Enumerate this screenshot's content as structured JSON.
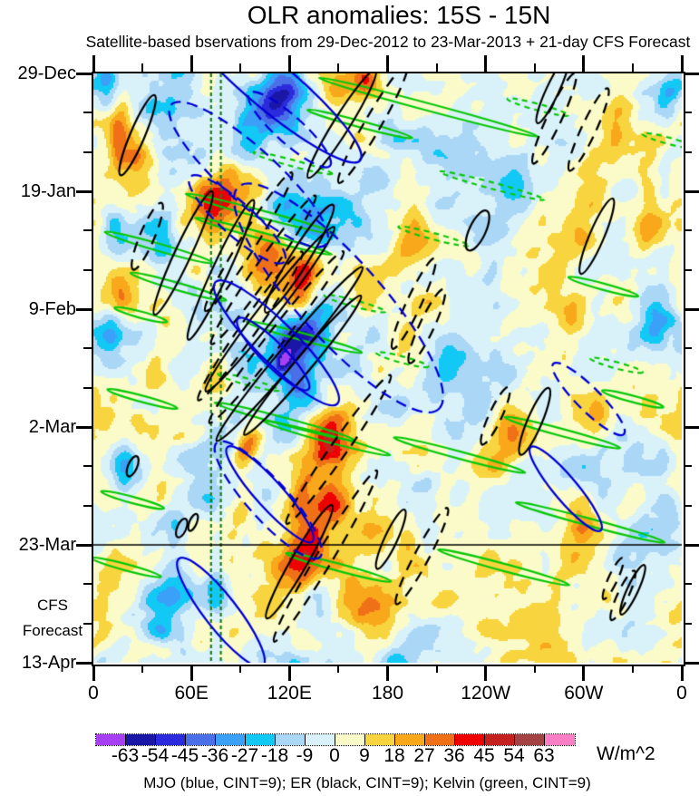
{
  "title": "OLR anomalies: 15S - 15N",
  "subtitle": "Satellite-based bservations from 29-Dec-2012 to 23-Mar-2013 + 21-day CFS Forecast",
  "caption": "MJO (blue, CINT=9); ER (black, CINT=9); Kelvin (green, CINT=9)",
  "y_axis": {
    "labels": [
      "29-Dec",
      "19-Jan",
      "9-Feb",
      "2-Mar",
      "23-Mar",
      "13-Apr"
    ],
    "side_labels": [
      "CFS",
      "Forecast"
    ]
  },
  "x_axis": {
    "labels": [
      "0",
      "60E",
      "120E",
      "180",
      "120W",
      "60W",
      "0"
    ]
  },
  "colorbar": {
    "units": "W/m^2",
    "tick_labels": [
      "-63",
      "-54",
      "-45",
      "-36",
      "-27",
      "-18",
      "-9",
      "0",
      "9",
      "18",
      "27",
      "36",
      "45",
      "54",
      "63"
    ],
    "colors": [
      "#A640F2",
      "#1B17A6",
      "#2B2BDD",
      "#4A6FE8",
      "#3AA0F8",
      "#12C9F6",
      "#ABD7F6",
      "#D9F2FA",
      "#FBFBC9",
      "#F8D43E",
      "#F9A71B",
      "#F07018",
      "#EF0000",
      "#C62121",
      "#A34343",
      "#FC7EC4"
    ]
  },
  "chart_data": {
    "type": "heatmap",
    "title": "OLR anomalies: 15S - 15N",
    "x_label_ticks": [
      "0",
      "60E",
      "120E",
      "180",
      "120W",
      "60W",
      "0"
    ],
    "x_range_deg": [
      0,
      360
    ],
    "time_ticks": [
      "29-Dec",
      "19-Jan",
      "9-Feb",
      "2-Mar",
      "23-Mar",
      "13-Apr"
    ],
    "time_span_days": 105,
    "forecast_line_day": 84,
    "contour_interval": 9,
    "levels": [
      -63,
      -54,
      -45,
      -36,
      -27,
      -18,
      -9,
      0,
      9,
      18,
      27,
      36,
      45,
      54,
      63
    ],
    "palette": [
      "#A640F2",
      "#1B17A6",
      "#2B2BDD",
      "#4A6FE8",
      "#3AA0F8",
      "#12C9F6",
      "#ABD7F6",
      "#D9F2FA",
      "#FBFBC9",
      "#F8D43E",
      "#F9A71B",
      "#F07018",
      "#EF0000",
      "#C62121",
      "#A34343",
      "#FC7EC4"
    ],
    "dashed_vlines_lon": [
      72,
      78
    ],
    "vline_color": "#1F7A1F",
    "mjo_color": "#0000D6",
    "er_color": "#000000",
    "kelvin_color": "#0AC80A",
    "noise": {
      "seed": 7,
      "octaves": [
        [
          9,
          12,
          0.5
        ],
        [
          18,
          11,
          -0.18
        ],
        [
          36,
          7,
          0.3
        ],
        [
          60,
          3.5,
          0
        ]
      ]
    },
    "blobs": [
      [
        115,
        5,
        -46,
        24,
        6,
        35
      ],
      [
        118,
        4,
        -15,
        8,
        3,
        35
      ],
      [
        108,
        7,
        -15,
        10,
        4,
        35
      ],
      [
        95,
        13,
        -28,
        16,
        6,
        35
      ],
      [
        148,
        4,
        26,
        13,
        5,
        0
      ],
      [
        166,
        1,
        30,
        8,
        3,
        0
      ],
      [
        18,
        8,
        22,
        8,
        5,
        0
      ],
      [
        27,
        15,
        20,
        10,
        5,
        0
      ],
      [
        15,
        13,
        22,
        5,
        4,
        0
      ],
      [
        8,
        3,
        -22,
        6,
        4,
        0
      ],
      [
        75,
        22,
        32,
        15,
        6,
        20
      ],
      [
        132,
        25,
        -32,
        16,
        6,
        20
      ],
      [
        12,
        27,
        -22,
        7,
        5,
        0
      ],
      [
        42,
        30,
        -22,
        9,
        5,
        0
      ],
      [
        128,
        36,
        52,
        9,
        5,
        30
      ],
      [
        110,
        32,
        26,
        13,
        6,
        30
      ],
      [
        135,
        45,
        -26,
        11,
        5,
        35
      ],
      [
        118,
        49,
        -40,
        11,
        5,
        35
      ],
      [
        116,
        51.5,
        -30,
        4,
        2.5,
        35
      ],
      [
        124,
        56,
        -30,
        11,
        5,
        35
      ],
      [
        147,
        65,
        34,
        13,
        7,
        30
      ],
      [
        95,
        66,
        40,
        7,
        4,
        30
      ],
      [
        125,
        76,
        34,
        6,
        4,
        30
      ],
      [
        15,
        38,
        20,
        7,
        4,
        0
      ],
      [
        105,
        74,
        -22,
        9,
        5,
        0
      ],
      [
        140,
        78,
        26,
        11,
        6,
        40
      ],
      [
        124,
        88,
        32,
        13,
        8,
        45
      ],
      [
        75,
        90,
        -26,
        7,
        9,
        0
      ],
      [
        170,
        96,
        22,
        11,
        6,
        0
      ],
      [
        228,
        14,
        -18,
        18,
        7,
        0
      ],
      [
        300,
        25,
        20,
        11,
        6,
        0
      ],
      [
        322,
        9,
        22,
        9,
        5,
        0
      ],
      [
        352,
        4,
        -18,
        7,
        4,
        0
      ],
      [
        255,
        64,
        24,
        11,
        5,
        0
      ],
      [
        300,
        80,
        22,
        9,
        5,
        0
      ],
      [
        222,
        50,
        -16,
        13,
        6,
        0
      ],
      [
        196,
        30,
        18,
        9,
        5,
        0
      ],
      [
        40,
        55,
        16,
        9,
        6,
        0
      ],
      [
        18,
        70,
        -20,
        8,
        5,
        0
      ],
      [
        10,
        45,
        -18,
        7,
        5,
        0
      ],
      [
        345,
        45,
        -16,
        8,
        5,
        0
      ],
      [
        205,
        75,
        -18,
        9,
        5,
        0
      ],
      [
        244,
        37,
        -20,
        10,
        5,
        0
      ],
      [
        260,
        20,
        -16,
        9,
        4,
        0
      ],
      [
        291,
        45,
        18,
        9,
        5,
        0
      ],
      [
        350,
        18,
        -18,
        7,
        5,
        0
      ],
      [
        310,
        60,
        20,
        10,
        5,
        0
      ],
      [
        341,
        23,
        22,
        8,
        5,
        0
      ],
      [
        326,
        41,
        20,
        9,
        5,
        0
      ],
      [
        50,
        80,
        -18,
        8,
        5,
        0
      ],
      [
        45,
        95,
        -15,
        12,
        8,
        0
      ]
    ],
    "overlays": {
      "mjo_solid": [
        [
          108,
          2,
          130,
          26,
          40
        ],
        [
          112,
          48,
          95,
          22,
          45
        ],
        [
          110,
          50,
          55,
          13,
          45
        ],
        [
          108,
          75,
          70,
          15,
          48
        ],
        [
          78,
          96,
          75,
          18,
          52
        ],
        [
          289,
          74,
          60,
          13,
          50
        ]
      ],
      "mjo_dashed": [
        [
          95,
          18,
          115,
          30,
          42
        ],
        [
          88,
          26,
          70,
          18,
          42
        ],
        [
          150,
          40,
          165,
          45,
          48
        ],
        [
          107,
          76,
          85,
          22,
          48
        ],
        [
          303,
          58,
          55,
          13,
          45
        ],
        [
          120,
          10,
          60,
          15,
          42
        ]
      ],
      "er_solid": [
        [
          27,
          11,
          48,
          8,
          113
        ],
        [
          152,
          9,
          70,
          9,
          122
        ],
        [
          55,
          32,
          75,
          9,
          115
        ],
        [
          78,
          35,
          85,
          9,
          115
        ],
        [
          126,
          33,
          70,
          10,
          122
        ],
        [
          108,
          42,
          115,
          10,
          128
        ],
        [
          120,
          50,
          125,
          10,
          130
        ],
        [
          128,
          52,
          100,
          9,
          130
        ],
        [
          235,
          28,
          24,
          9,
          115
        ],
        [
          308,
          29,
          45,
          8,
          113
        ],
        [
          270,
          62,
          40,
          8,
          113
        ],
        [
          24,
          70,
          12,
          5,
          113
        ],
        [
          54,
          81,
          11,
          5,
          113
        ],
        [
          61,
          80,
          10,
          4,
          113
        ],
        [
          126,
          87,
          72,
          9,
          120
        ],
        [
          182,
          83,
          36,
          7,
          115
        ],
        [
          281,
          3,
          40,
          7,
          115
        ],
        [
          330,
          92,
          30,
          6,
          115
        ]
      ],
      "er_dashed": [
        [
          282,
          8,
          55,
          8,
          115
        ],
        [
          303,
          10,
          50,
          8,
          115
        ],
        [
          171,
          9,
          75,
          9,
          120
        ],
        [
          33,
          29,
          40,
          8,
          113
        ],
        [
          95,
          30,
          90,
          9,
          122
        ],
        [
          104,
          35,
          100,
          9,
          125
        ],
        [
          96,
          45,
          100,
          9,
          125
        ],
        [
          112,
          47,
          120,
          9,
          128
        ],
        [
          196,
          41,
          55,
          8,
          115
        ],
        [
          204,
          45,
          45,
          8,
          115
        ],
        [
          246,
          61,
          35,
          7,
          115
        ],
        [
          150,
          67,
          100,
          9,
          125
        ],
        [
          142,
          86,
          110,
          9,
          121
        ],
        [
          201,
          86,
          60,
          8,
          118
        ],
        [
          324,
          93,
          30,
          6,
          115
        ],
        [
          318,
          90,
          25,
          5,
          115
        ]
      ],
      "kelvin_solid": [
        [
          205,
          6,
          125,
          4,
          15
        ],
        [
          163,
          9,
          60,
          3.5,
          15
        ],
        [
          40,
          31,
          62,
          4,
          16
        ],
        [
          52,
          38,
          55,
          4,
          16
        ],
        [
          102,
          25,
          85,
          4,
          15
        ],
        [
          104,
          29,
          78,
          3.5,
          15
        ],
        [
          129,
          47,
          66,
          4,
          15
        ],
        [
          117,
          62,
          80,
          4,
          15
        ],
        [
          29,
          43,
          30,
          3.5,
          15
        ],
        [
          30,
          58,
          40,
          3.5,
          15
        ],
        [
          24,
          76,
          36,
          3.5,
          15
        ],
        [
          143,
          65,
          72,
          4,
          15
        ],
        [
          224,
          68,
          75,
          4,
          15
        ],
        [
          287,
          64,
          66,
          4,
          15
        ],
        [
          304,
          80,
          85,
          4,
          15
        ],
        [
          251,
          88,
          75,
          4,
          15
        ],
        [
          150,
          88,
          60,
          4,
          15
        ],
        [
          20,
          88,
          40,
          3.5,
          15
        ],
        [
          312,
          38,
          40,
          3.5,
          15
        ],
        [
          330,
          58,
          35,
          3.5,
          15
        ]
      ],
      "kelvin_dashed": [
        [
          122,
          16,
          45,
          3.5,
          15
        ],
        [
          244,
          20,
          60,
          3.5,
          15
        ],
        [
          208,
          29,
          40,
          3.5,
          15
        ],
        [
          160,
          41,
          35,
          3.5,
          15
        ],
        [
          189,
          51,
          30,
          3.5,
          15
        ],
        [
          320,
          52,
          30,
          3.5,
          15
        ],
        [
          352,
          12,
          30,
          3.5,
          15
        ],
        [
          95,
          55,
          35,
          3.5,
          15
        ],
        [
          272,
          6,
          35,
          3.5,
          15
        ]
      ]
    }
  }
}
